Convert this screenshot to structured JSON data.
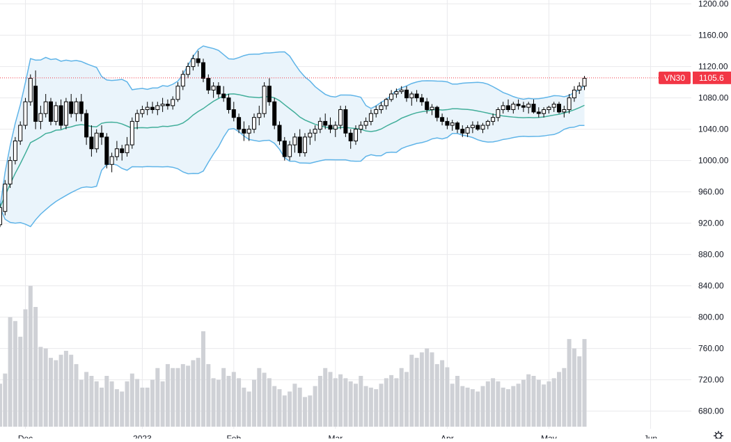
{
  "chart_data": {
    "type": "candlestick",
    "symbol": "VN30",
    "last_price": "1105.6",
    "colors": {
      "bull_fill": "#ffffff",
      "bear_fill": "#000000",
      "wick": "#000000",
      "bb_outer": "#5fb4e8",
      "bb_basis": "#41ae9a",
      "bb_band_fill": "#eaf4fb",
      "volume": "#cfd1d6",
      "grid": "#e9e9ec",
      "price_line": "#f23645",
      "price_tag": "#f23645"
    },
    "y_axis": {
      "min": 645,
      "max": 1205,
      "ticks": [
        "680.00",
        "720.00",
        "760.00",
        "800.00",
        "840.00",
        "880.00",
        "920.00",
        "960.00",
        "1000.00",
        "1040.00",
        "1080.00",
        "1120.00",
        "1160.00",
        "1200.00"
      ]
    },
    "x_axis_labels": [
      {
        "text": "Dec",
        "bar": 5
      },
      {
        "text": "2023",
        "bar": 28
      },
      {
        "text": "Feb",
        "bar": 46
      },
      {
        "text": "Mar",
        "bar": 66
      },
      {
        "text": "Apr",
        "bar": 88
      },
      {
        "text": "May",
        "bar": 108
      },
      {
        "text": "Jun",
        "bar": 128
      }
    ],
    "candles": [
      [
        918,
        945,
        915,
        940
      ],
      [
        935,
        975,
        930,
        970
      ],
      [
        970,
        1005,
        965,
        1000
      ],
      [
        1000,
        1030,
        995,
        1025
      ],
      [
        1025,
        1050,
        1020,
        1045
      ],
      [
        1045,
        1080,
        1040,
        1075
      ],
      [
        1075,
        1110,
        1070,
        1105
      ],
      [
        1095,
        1115,
        1040,
        1050
      ],
      [
        1050,
        1070,
        1040,
        1060
      ],
      [
        1060,
        1085,
        1055,
        1075
      ],
      [
        1075,
        1080,
        1045,
        1050
      ],
      [
        1050,
        1075,
        1045,
        1070
      ],
      [
        1070,
        1078,
        1040,
        1045
      ],
      [
        1045,
        1080,
        1040,
        1075
      ],
      [
        1075,
        1085,
        1055,
        1060
      ],
      [
        1060,
        1080,
        1050,
        1075
      ],
      [
        1075,
        1085,
        1050,
        1060
      ],
      [
        1060,
        1065,
        1020,
        1030
      ],
      [
        1030,
        1045,
        1005,
        1015
      ],
      [
        1015,
        1040,
        1010,
        1035
      ],
      [
        1035,
        1045,
        1020,
        1030
      ],
      [
        1030,
        1035,
        990,
        995
      ],
      [
        995,
        1010,
        985,
        1005
      ],
      [
        1005,
        1025,
        1000,
        1015
      ],
      [
        1015,
        1020,
        1000,
        1010
      ],
      [
        1010,
        1030,
        1005,
        1020
      ],
      [
        1020,
        1055,
        1015,
        1050
      ],
      [
        1050,
        1065,
        1040,
        1060
      ],
      [
        1060,
        1070,
        1055,
        1065
      ],
      [
        1065,
        1075,
        1058,
        1068
      ],
      [
        1068,
        1075,
        1060,
        1065
      ],
      [
        1065,
        1075,
        1058,
        1070
      ],
      [
        1070,
        1080,
        1062,
        1072
      ],
      [
        1072,
        1078,
        1065,
        1070
      ],
      [
        1070,
        1082,
        1065,
        1078
      ],
      [
        1078,
        1100,
        1075,
        1095
      ],
      [
        1095,
        1115,
        1090,
        1110
      ],
      [
        1110,
        1125,
        1105,
        1120
      ],
      [
        1120,
        1135,
        1115,
        1130
      ],
      [
        1130,
        1140,
        1120,
        1125
      ],
      [
        1125,
        1130,
        1100,
        1105
      ],
      [
        1105,
        1110,
        1085,
        1090
      ],
      [
        1090,
        1100,
        1080,
        1095
      ],
      [
        1095,
        1100,
        1080,
        1085
      ],
      [
        1085,
        1095,
        1075,
        1080
      ],
      [
        1080,
        1085,
        1060,
        1065
      ],
      [
        1065,
        1075,
        1050,
        1055
      ],
      [
        1055,
        1060,
        1035,
        1040
      ],
      [
        1040,
        1050,
        1025,
        1035
      ],
      [
        1035,
        1045,
        1025,
        1040
      ],
      [
        1040,
        1060,
        1035,
        1055
      ],
      [
        1055,
        1070,
        1045,
        1060
      ],
      [
        1060,
        1100,
        1055,
        1095
      ],
      [
        1095,
        1105,
        1070,
        1075
      ],
      [
        1075,
        1080,
        1040,
        1045
      ],
      [
        1045,
        1050,
        1020,
        1025
      ],
      [
        1025,
        1030,
        1000,
        1005
      ],
      [
        1005,
        1025,
        1000,
        1020
      ],
      [
        1020,
        1035,
        1010,
        1030
      ],
      [
        1030,
        1040,
        1005,
        1010
      ],
      [
        1010,
        1035,
        1005,
        1030
      ],
      [
        1030,
        1040,
        1020,
        1035
      ],
      [
        1035,
        1045,
        1025,
        1040
      ],
      [
        1040,
        1055,
        1035,
        1050
      ],
      [
        1050,
        1060,
        1040,
        1045
      ],
      [
        1045,
        1055,
        1035,
        1040
      ],
      [
        1040,
        1050,
        1030,
        1045
      ],
      [
        1045,
        1070,
        1040,
        1065
      ],
      [
        1065,
        1070,
        1030,
        1035
      ],
      [
        1035,
        1040,
        1015,
        1025
      ],
      [
        1025,
        1045,
        1020,
        1040
      ],
      [
        1040,
        1050,
        1035,
        1045
      ],
      [
        1045,
        1055,
        1040,
        1050
      ],
      [
        1050,
        1065,
        1045,
        1060
      ],
      [
        1060,
        1070,
        1055,
        1065
      ],
      [
        1065,
        1075,
        1060,
        1070
      ],
      [
        1070,
        1080,
        1065,
        1078
      ],
      [
        1078,
        1090,
        1075,
        1085
      ],
      [
        1085,
        1092,
        1080,
        1088
      ],
      [
        1088,
        1095,
        1085,
        1090
      ],
      [
        1090,
        1095,
        1075,
        1080
      ],
      [
        1080,
        1088,
        1070,
        1085
      ],
      [
        1085,
        1090,
        1075,
        1080
      ],
      [
        1080,
        1085,
        1070,
        1075
      ],
      [
        1075,
        1080,
        1060,
        1065
      ],
      [
        1065,
        1072,
        1058,
        1068
      ],
      [
        1068,
        1070,
        1050,
        1055
      ],
      [
        1055,
        1060,
        1045,
        1050
      ],
      [
        1050,
        1055,
        1040,
        1045
      ],
      [
        1045,
        1052,
        1038,
        1048
      ],
      [
        1048,
        1050,
        1035,
        1040
      ],
      [
        1040,
        1045,
        1030,
        1035
      ],
      [
        1035,
        1045,
        1030,
        1042
      ],
      [
        1042,
        1050,
        1035,
        1045
      ],
      [
        1045,
        1050,
        1038,
        1040
      ],
      [
        1040,
        1048,
        1035,
        1045
      ],
      [
        1045,
        1052,
        1040,
        1050
      ],
      [
        1050,
        1060,
        1045,
        1055
      ],
      [
        1055,
        1068,
        1050,
        1065
      ],
      [
        1065,
        1075,
        1060,
        1070
      ],
      [
        1070,
        1078,
        1062,
        1065
      ],
      [
        1065,
        1075,
        1060,
        1072
      ],
      [
        1072,
        1078,
        1065,
        1070
      ],
      [
        1070,
        1075,
        1062,
        1068
      ],
      [
        1068,
        1075,
        1060,
        1072
      ],
      [
        1072,
        1078,
        1060,
        1062
      ],
      [
        1062,
        1068,
        1055,
        1060
      ],
      [
        1060,
        1068,
        1055,
        1065
      ],
      [
        1065,
        1070,
        1060,
        1068
      ],
      [
        1068,
        1075,
        1062,
        1072
      ],
      [
        1072,
        1075,
        1060,
        1062
      ],
      [
        1062,
        1070,
        1055,
        1065
      ],
      [
        1065,
        1085,
        1060,
        1080
      ],
      [
        1080,
        1095,
        1075,
        1090
      ],
      [
        1090,
        1100,
        1085,
        1095
      ],
      [
        1095,
        1108,
        1090,
        1105
      ]
    ],
    "volumes": [
      715,
      728,
      800,
      795,
      775,
      810,
      840,
      813,
      762,
      760,
      748,
      745,
      752,
      757,
      752,
      740,
      720,
      730,
      725,
      718,
      710,
      725,
      718,
      708,
      705,
      718,
      728,
      721,
      710,
      710,
      720,
      735,
      718,
      740,
      735,
      735,
      740,
      738,
      745,
      748,
      782,
      740,
      722,
      720,
      735,
      725,
      730,
      722,
      710,
      705,
      720,
      735,
      729,
      722,
      712,
      708,
      700,
      705,
      715,
      710,
      698,
      700,
      712,
      725,
      735,
      730,
      722,
      727,
      722,
      718,
      715,
      725,
      712,
      710,
      708,
      715,
      722,
      726,
      722,
      735,
      730,
      752,
      748,
      755,
      760,
      755,
      740,
      745,
      736,
      715,
      725,
      712,
      710,
      708,
      705,
      712,
      718,
      722,
      718,
      710,
      708,
      712,
      715,
      720,
      727,
      725,
      720,
      714,
      718,
      722,
      730,
      735,
      772,
      760,
      750,
      772
    ]
  }
}
